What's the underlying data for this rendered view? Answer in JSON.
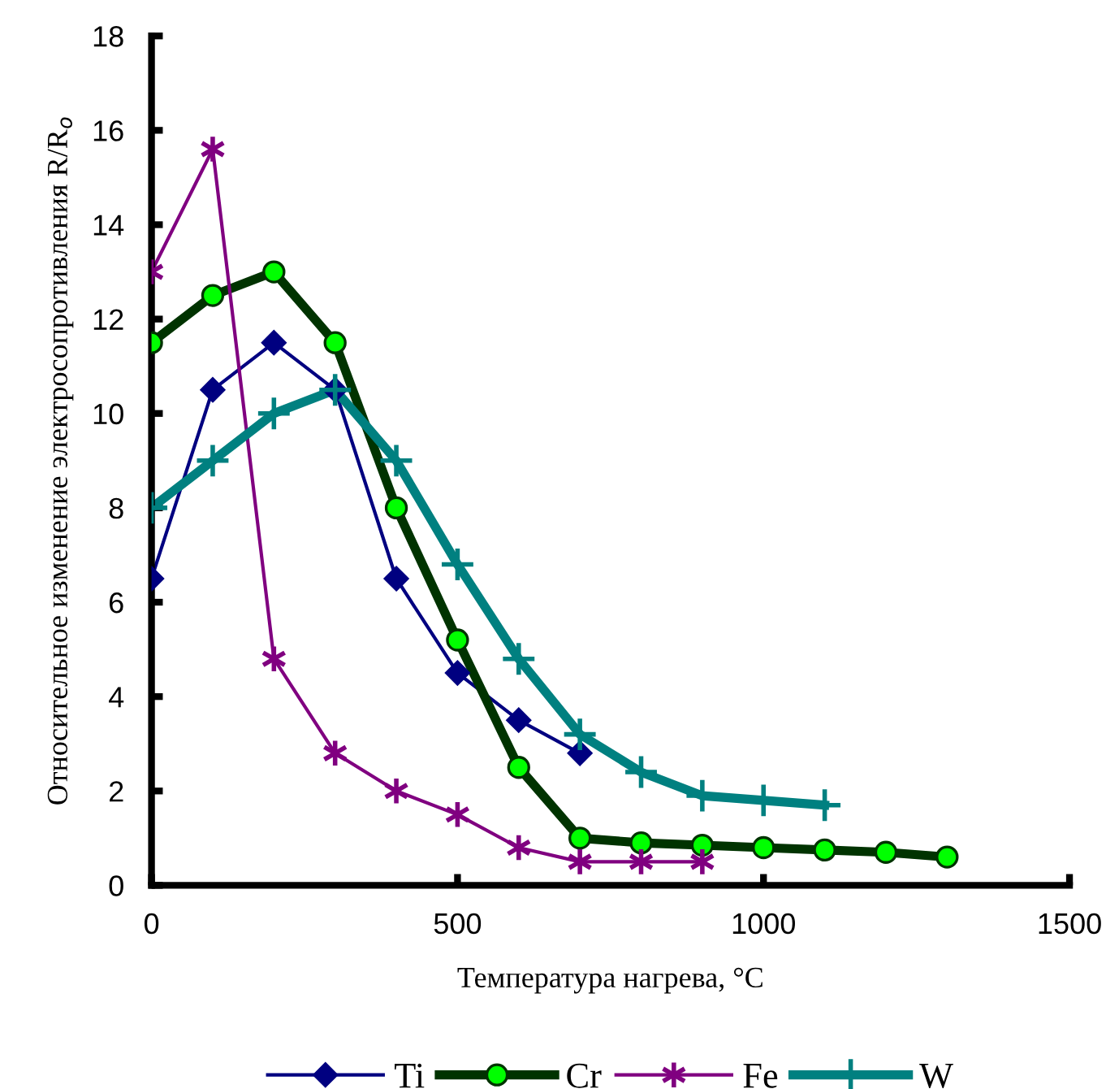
{
  "chart_data": {
    "type": "line",
    "xlabel": "Температура нагрева, °C",
    "ylabel": "Относительное изменение электросопротивления R/R$_{o}$",
    "xlim": [
      0,
      1500
    ],
    "xticks": [
      0,
      500,
      1000,
      1500
    ],
    "ylim": [
      0,
      18
    ],
    "yticks": [
      0,
      2,
      4,
      6,
      8,
      10,
      12,
      14,
      16,
      18
    ],
    "grid": false,
    "legend": "bottom",
    "series": [
      {
        "name": "Ti",
        "color": "#000080",
        "marker": "diamond",
        "x": [
          0,
          100,
          200,
          300,
          400,
          500,
          600,
          700
        ],
        "values": [
          6.5,
          10.5,
          11.5,
          10.5,
          6.5,
          4.5,
          3.5,
          2.8
        ]
      },
      {
        "name": "Cr",
        "color": "#003300",
        "marker": "circle",
        "x": [
          0,
          100,
          200,
          300,
          400,
          500,
          600,
          700,
          800,
          900,
          1000,
          1100,
          1200,
          1300
        ],
        "values": [
          11.5,
          12.5,
          13,
          11.5,
          8,
          5.2,
          2.5,
          1.0,
          0.9,
          0.85,
          0.8,
          0.75,
          0.7,
          0.6
        ]
      },
      {
        "name": "Fe",
        "color": "#800080",
        "marker": "cross",
        "x": [
          0,
          100,
          200,
          300,
          400,
          500,
          600,
          700,
          800,
          900
        ],
        "values": [
          13,
          15.6,
          4.8,
          2.8,
          2.0,
          1.5,
          0.8,
          0.5,
          0.5,
          0.5
        ]
      },
      {
        "name": "W",
        "color": "#008080",
        "marker": "cross",
        "x": [
          0,
          100,
          200,
          300,
          400,
          500,
          600,
          700,
          800,
          900,
          1000,
          1100
        ],
        "values": [
          8,
          9,
          10,
          10.5,
          9,
          6.8,
          4.8,
          3.2,
          2.4,
          1.9,
          1.8,
          1.7
        ]
      }
    ]
  }
}
